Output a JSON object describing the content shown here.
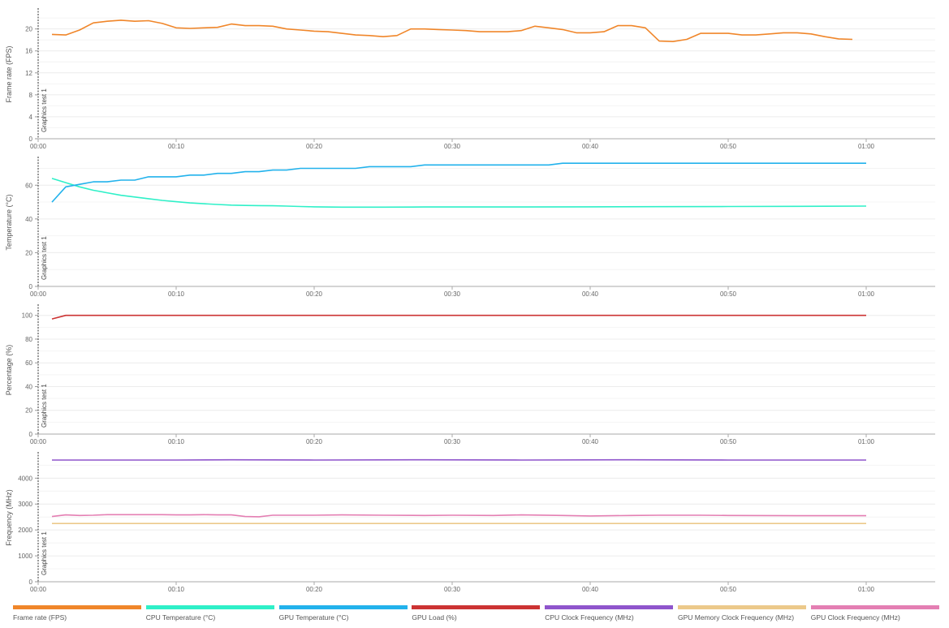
{
  "marker_label": "Graphics test 1",
  "x_ticks": [
    "00:00",
    "00:10",
    "00:20",
    "00:30",
    "00:40",
    "00:50",
    "01:00"
  ],
  "legend": [
    {
      "label": "Frame rate (FPS)",
      "color": "#f0862a"
    },
    {
      "label": "CPU Temperature (°C)",
      "color": "#2ff0c8"
    },
    {
      "label": "GPU Temperature (°C)",
      "color": "#22b2ec"
    },
    {
      "label": "GPU Load (%)",
      "color": "#cc3333"
    },
    {
      "label": "CPU Clock Frequency (MHz)",
      "color": "#8f55cc"
    },
    {
      "label": "GPU Memory Clock Frequency (MHz)",
      "color": "#ecc98a"
    },
    {
      "label": "GPU Clock Frequency (MHz)",
      "color": "#e47fb3"
    }
  ],
  "chart_data": [
    {
      "type": "line",
      "ylabel": "Frame rate (FPS)",
      "ylim": [
        0,
        23.5
      ],
      "yticks": [
        0,
        4,
        8,
        12,
        16,
        20
      ],
      "xlim": [
        0,
        60
      ],
      "grid": true,
      "series": [
        {
          "name": "Frame rate (FPS)",
          "color": "#f0862a",
          "x": [
            1,
            2,
            3,
            4,
            5,
            6,
            7,
            8,
            9,
            10,
            11,
            12,
            13,
            14,
            15,
            16,
            17,
            18,
            19,
            20,
            21,
            22,
            23,
            24,
            25,
            26,
            27,
            28,
            29,
            30,
            31,
            32,
            33,
            34,
            35,
            36,
            37,
            38,
            39,
            40,
            41,
            42,
            43,
            44,
            45,
            46,
            47,
            48,
            49,
            50,
            51,
            52,
            53,
            54,
            55,
            56,
            57,
            58,
            59
          ],
          "y": [
            19,
            18.9,
            19.8,
            21.1,
            21.4,
            21.6,
            21.4,
            21.5,
            21,
            20.2,
            20.1,
            20.2,
            20.3,
            20.9,
            20.6,
            20.6,
            20.5,
            20,
            19.8,
            19.6,
            19.5,
            19.2,
            18.9,
            18.8,
            18.6,
            18.8,
            20,
            20,
            19.9,
            19.8,
            19.7,
            19.5,
            19.5,
            19.5,
            19.7,
            20.5,
            20.2,
            19.9,
            19.3,
            19.3,
            19.5,
            20.6,
            20.6,
            20.2,
            17.8,
            17.7,
            18.1,
            19.2,
            19.2,
            19.2,
            18.9,
            18.9,
            19.1,
            19.3,
            19.3,
            19.1,
            18.6,
            18.2,
            18.1
          ]
        }
      ]
    },
    {
      "type": "line",
      "ylabel": "Temperature (°C)",
      "ylim": [
        0,
        76
      ],
      "yticks": [
        0,
        20,
        40,
        60
      ],
      "xlim": [
        0,
        60
      ],
      "grid": true,
      "series": [
        {
          "name": "CPU Temperature (°C)",
          "color": "#2ff0c8",
          "x": [
            1,
            2,
            3,
            4,
            5,
            6,
            7,
            8,
            9,
            10,
            11,
            12,
            13,
            14,
            15,
            16,
            17,
            18,
            19,
            20,
            22,
            25,
            28,
            30,
            35,
            40,
            45,
            50,
            55,
            60
          ],
          "y": [
            64,
            61.5,
            59,
            57,
            55.5,
            54,
            53,
            52,
            51,
            50.2,
            49.5,
            49,
            48.6,
            48.2,
            48,
            47.9,
            47.8,
            47.6,
            47.4,
            47.2,
            47,
            47,
            47.1,
            47.1,
            47.1,
            47.2,
            47.3,
            47.4,
            47.5,
            47.6
          ]
        },
        {
          "name": "GPU Temperature (°C)",
          "color": "#22b2ec",
          "x": [
            1,
            2,
            3,
            4,
            5,
            6,
            7,
            8,
            9,
            10,
            11,
            12,
            13,
            14,
            15,
            16,
            17,
            18,
            19,
            20,
            21,
            22,
            23,
            24,
            25,
            26,
            27,
            28,
            29,
            30,
            31,
            32,
            33,
            34,
            35,
            36,
            37,
            38,
            39,
            40,
            45,
            50,
            55,
            60
          ],
          "y": [
            50,
            59,
            60.5,
            62,
            62,
            63,
            63,
            65,
            65,
            65,
            66,
            66,
            67,
            67,
            68,
            68,
            69,
            69,
            70,
            70,
            70,
            70,
            70,
            71,
            71,
            71,
            71,
            72,
            72,
            72,
            72,
            72,
            72,
            72,
            72,
            72,
            72,
            73,
            73,
            73,
            73,
            73,
            73,
            73
          ]
        }
      ]
    },
    {
      "type": "line",
      "ylabel": "Percentage (%)",
      "ylim": [
        0,
        108
      ],
      "yticks": [
        0,
        20,
        40,
        60,
        80,
        100
      ],
      "xlim": [
        0,
        60
      ],
      "grid": true,
      "series": [
        {
          "name": "GPU Load (%)",
          "color": "#cc3333",
          "x": [
            1,
            2,
            10,
            20,
            30,
            40,
            50,
            60
          ],
          "y": [
            97,
            100,
            100,
            100,
            100,
            100,
            100,
            100
          ]
        }
      ]
    },
    {
      "type": "line",
      "ylabel": "Frequency (MHz)",
      "ylim": [
        0,
        4950
      ],
      "yticks": [
        0,
        1000,
        2000,
        3000,
        4000
      ],
      "xlim": [
        0,
        60
      ],
      "grid": true,
      "series": [
        {
          "name": "CPU Clock Frequency (MHz)",
          "color": "#8f55cc",
          "x": [
            1,
            10,
            14,
            20,
            28,
            35,
            43,
            50,
            60
          ],
          "y": [
            4700,
            4700,
            4710,
            4700,
            4710,
            4700,
            4710,
            4700,
            4700
          ]
        },
        {
          "name": "GPU Memory Clock Frequency (MHz)",
          "color": "#ecc98a",
          "x": [
            1,
            10,
            20,
            30,
            40,
            50,
            60
          ],
          "y": [
            2250,
            2250,
            2250,
            2250,
            2250,
            2250,
            2250
          ]
        },
        {
          "name": "GPU Clock Frequency (MHz)",
          "color": "#e47fb3",
          "x": [
            1,
            2,
            3,
            4,
            5,
            6,
            7,
            8,
            9,
            10,
            11,
            12,
            13,
            14,
            15,
            16,
            17,
            18,
            19,
            20,
            22,
            25,
            28,
            30,
            33,
            35,
            38,
            40,
            43,
            45,
            48,
            50,
            55,
            58,
            60
          ],
          "y": [
            2520,
            2580,
            2560,
            2570,
            2590,
            2590,
            2590,
            2590,
            2590,
            2580,
            2580,
            2590,
            2580,
            2580,
            2520,
            2510,
            2570,
            2570,
            2570,
            2570,
            2580,
            2570,
            2560,
            2570,
            2560,
            2580,
            2560,
            2540,
            2560,
            2570,
            2570,
            2560,
            2550,
            2550,
            2550
          ]
        }
      ]
    }
  ]
}
